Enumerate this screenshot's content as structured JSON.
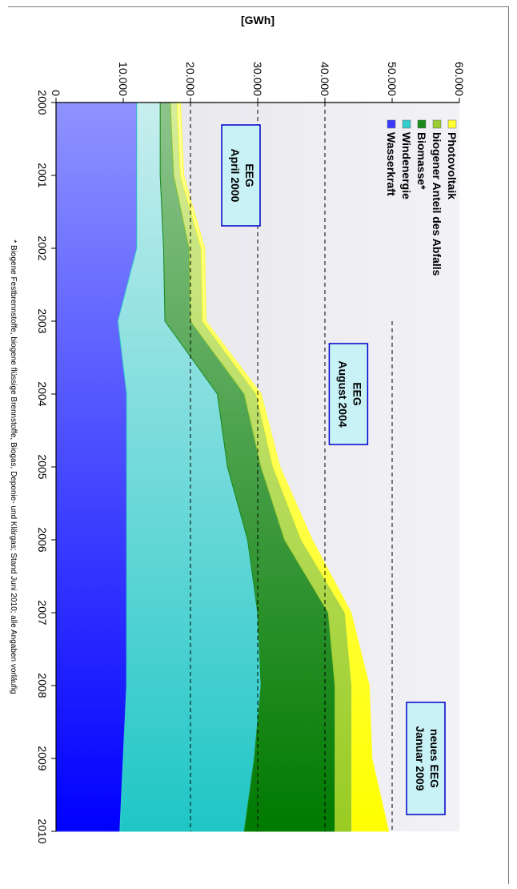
{
  "chart_data": {
    "type": "area",
    "stacked": true,
    "ylabel": "[GWh]",
    "ylim": [
      0,
      60000
    ],
    "yticks": [
      "0",
      "10.000",
      "20.000",
      "30.000",
      "40.000",
      "50.000",
      "60.000"
    ],
    "yticks_values": [
      0,
      10000,
      20000,
      30000,
      40000,
      50000,
      60000
    ],
    "x": [
      "2000",
      "2001",
      "2002",
      "2003",
      "2004",
      "2005",
      "2006",
      "2007",
      "2008",
      "2009",
      "2010"
    ],
    "series": [
      {
        "name": "Wasserkraft",
        "color": "#3a3aff",
        "values": [
          12000,
          12000,
          12000,
          9200,
          10500,
          10500,
          10500,
          10500,
          10500,
          10000,
          9500
        ]
      },
      {
        "name": "Windenergie",
        "color": "#33cccc",
        "values": [
          3500,
          3500,
          4000,
          7000,
          13500,
          15000,
          18000,
          19500,
          20000,
          19500,
          18500
        ]
      },
      {
        "name": "Biomasse*",
        "color": "#1a8a1a",
        "values": [
          1500,
          2000,
          3800,
          3800,
          4000,
          5000,
          5500,
          10500,
          11000,
          12000,
          13500
        ]
      },
      {
        "name": "biogener Anteil des Abfalls",
        "color": "#99cc33",
        "values": [
          1000,
          1000,
          1800,
          1800,
          1800,
          1800,
          2500,
          2500,
          2500,
          2500,
          2500
        ]
      },
      {
        "name": "Photovoltaik",
        "color": "#ffff33",
        "values": [
          500,
          500,
          500,
          500,
          700,
          1000,
          1600,
          900,
          2600,
          3000,
          5500
        ]
      }
    ],
    "legend": [
      {
        "name": "Photovoltaik",
        "color": "#ffff33"
      },
      {
        "name": "biogener Anteil des Abfalls",
        "color": "#99cc33"
      },
      {
        "name": "Biomasse*",
        "color": "#1a8a1a"
      },
      {
        "name": "Windenergie",
        "color": "#33cccc"
      },
      {
        "name": "Wasserkraft",
        "color": "#3a3aff"
      }
    ],
    "legend_position": "top-left",
    "reference_lines": [
      {
        "value": 20000,
        "from": 2000,
        "to": 2010
      },
      {
        "value": 30000,
        "from": 2000,
        "to": 2010
      },
      {
        "value": 40000,
        "from": 2000,
        "to": 2010
      },
      {
        "value": 50000,
        "from": 2003,
        "to": 2010
      }
    ],
    "annotations": [
      {
        "lines": [
          "EEG",
          "April 2000"
        ],
        "x": 2001,
        "y": 27500
      },
      {
        "lines": [
          "EEG",
          "August 2004"
        ],
        "x": 2004,
        "y": 43500
      },
      {
        "lines": [
          "neues EEG",
          "Januar 2009"
        ],
        "x": 2009,
        "y": 55000
      }
    ],
    "footnote": "* Biogene Festbrennstoffe, biogene flüssige Brennstoffe, Biogas, Deponie- und Klärgas; Stand Juni 2010; alle Angaben vorläufig"
  }
}
